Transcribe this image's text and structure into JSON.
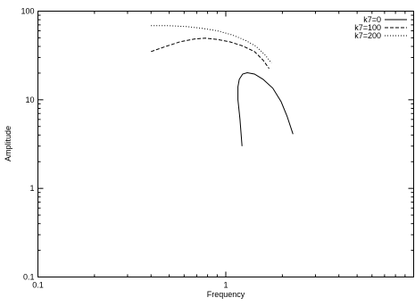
{
  "chart_data": {
    "type": "line",
    "xlabel": "Frequency",
    "ylabel": "Amplitude",
    "x_scale": "log",
    "y_scale": "log",
    "xlim": [
      0.1,
      10
    ],
    "ylim": [
      0.1,
      100
    ],
    "x_tick_labels": [
      "0.1",
      "1"
    ],
    "y_tick_labels": [
      "0.1",
      "1",
      "10",
      "100"
    ],
    "legend_position": "top-right",
    "grid": false,
    "series": [
      {
        "name": "k7=0",
        "dash": "solid",
        "points": [
          [
            1.22,
            3.0
          ],
          [
            1.19,
            6.0
          ],
          [
            1.16,
            10.0
          ],
          [
            1.16,
            14.0
          ],
          [
            1.18,
            17.0
          ],
          [
            1.23,
            19.5
          ],
          [
            1.3,
            20.2
          ],
          [
            1.42,
            19.5
          ],
          [
            1.58,
            17.0
          ],
          [
            1.78,
            13.5
          ],
          [
            1.97,
            9.5
          ],
          [
            2.12,
            6.5
          ],
          [
            2.28,
            4.1
          ]
        ]
      },
      {
        "name": "k7=100",
        "dash": "dashed",
        "points": [
          [
            0.4,
            35.0
          ],
          [
            0.48,
            40.0
          ],
          [
            0.57,
            45.0
          ],
          [
            0.68,
            48.5
          ],
          [
            0.78,
            49.5
          ],
          [
            0.9,
            48.0
          ],
          [
            1.05,
            45.0
          ],
          [
            1.23,
            40.5
          ],
          [
            1.42,
            35.0
          ],
          [
            1.58,
            28.0
          ],
          [
            1.7,
            22.5
          ]
        ]
      },
      {
        "name": "k7=200",
        "dash": "dotted",
        "points": [
          [
            0.4,
            68.5
          ],
          [
            0.5,
            68.5
          ],
          [
            0.62,
            67.0
          ],
          [
            0.75,
            64.0
          ],
          [
            0.9,
            60.0
          ],
          [
            1.08,
            54.0
          ],
          [
            1.27,
            47.0
          ],
          [
            1.45,
            40.0
          ],
          [
            1.62,
            32.0
          ],
          [
            1.75,
            26.0
          ]
        ]
      }
    ]
  }
}
